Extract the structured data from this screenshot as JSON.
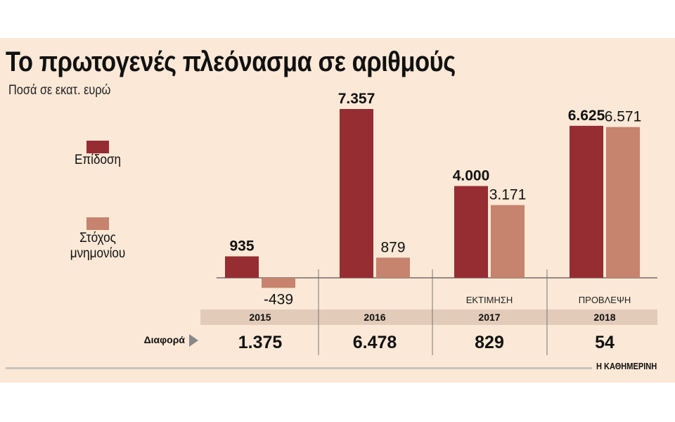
{
  "title": "Το πρωτογενές πλεόνασμα σε αριθμούς",
  "subtitle": "Ποσά σε εκατ. ευρώ",
  "legend": [
    {
      "label": "Επίδοση",
      "color": "#962d33"
    },
    {
      "label": "Στόχος μνημονίου",
      "color": "#c6836e"
    }
  ],
  "diff_label": "Διαφορά",
  "source": "Η ΚΑΘΗΜΕΡΙΝΗ",
  "colors": {
    "year_band": "#e2cbb9",
    "axis": "#555555"
  },
  "chart_data": {
    "type": "bar",
    "title": "Το πρωτογενές πλεόνασμα σε αριθμούς",
    "subtitle": "Ποσά σε εκατ. ευρώ",
    "categories": [
      "2015",
      "2016",
      "2017",
      "2018"
    ],
    "category_notes": [
      "",
      "",
      "ΕΚΤΙΜΗΣΗ",
      "ΠΡΟΒΛΕΨΗ"
    ],
    "series": [
      {
        "name": "Επίδοση",
        "values": [
          935,
          7357,
          4000,
          6625
        ],
        "labels": [
          "935",
          "7.357",
          "4.000",
          "6.625"
        ]
      },
      {
        "name": "Στόχος μνημονίου",
        "values": [
          -439,
          879,
          3171,
          6571
        ],
        "labels": [
          "-439",
          "879",
          "3.171",
          "6.571"
        ]
      }
    ],
    "differences": [
      "1.375",
      "6.478",
      "829",
      "54"
    ],
    "legend_position": "left",
    "grid": false
  }
}
